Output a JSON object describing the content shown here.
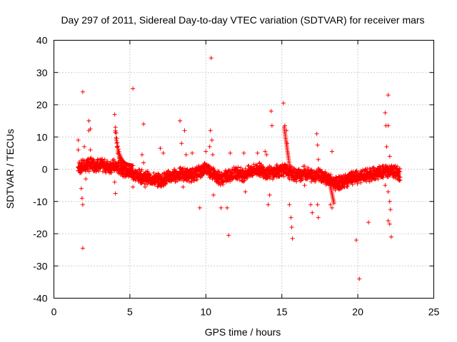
{
  "chart_data": {
    "type": "scatter",
    "title": "Day 297 of 2011, Sidereal Day-to-day VTEC variation (SDTVAR) for receiver mars",
    "xlabel": "GPS time / hours",
    "ylabel": "SDTVAR / TECUs",
    "xlim": [
      0,
      25
    ],
    "ylim": [
      -40,
      40
    ],
    "xticks": [
      0,
      5,
      10,
      15,
      20,
      25
    ],
    "yticks": [
      -40,
      -30,
      -20,
      -10,
      0,
      10,
      20,
      30,
      40
    ],
    "grid": true,
    "marker": "+",
    "color": "#ff0000",
    "baseline": [
      [
        1.6,
        0.5
      ],
      [
        2.0,
        1.0
      ],
      [
        2.5,
        1.5
      ],
      [
        3.0,
        1.2
      ],
      [
        3.5,
        0.8
      ],
      [
        4.0,
        1.0
      ],
      [
        4.5,
        0.0
      ],
      [
        5.0,
        -1.0
      ],
      [
        5.5,
        -2.0
      ],
      [
        6.0,
        -2.5
      ],
      [
        6.5,
        -3.0
      ],
      [
        7.0,
        -3.5
      ],
      [
        7.5,
        -2.5
      ],
      [
        8.0,
        -1.8
      ],
      [
        8.5,
        -1.5
      ],
      [
        9.0,
        -2.0
      ],
      [
        9.5,
        -1.0
      ],
      [
        10.0,
        0.5
      ],
      [
        10.5,
        -1.5
      ],
      [
        11.0,
        -3.0
      ],
      [
        11.5,
        -2.0
      ],
      [
        12.0,
        -1.0
      ],
      [
        12.5,
        -1.8
      ],
      [
        13.0,
        -0.5
      ],
      [
        13.5,
        0.0
      ],
      [
        14.0,
        -1.0
      ],
      [
        14.5,
        -1.0
      ],
      [
        15.0,
        0.0
      ],
      [
        15.5,
        -1.0
      ],
      [
        16.0,
        -2.0
      ],
      [
        16.5,
        -1.0
      ],
      [
        17.0,
        -2.0
      ],
      [
        17.5,
        -1.5
      ],
      [
        18.0,
        -3.0
      ],
      [
        18.5,
        -4.5
      ],
      [
        19.0,
        -4.0
      ],
      [
        19.5,
        -3.0
      ],
      [
        20.0,
        -2.5
      ],
      [
        20.5,
        -2.0
      ],
      [
        21.0,
        -1.5
      ],
      [
        21.5,
        -1.0
      ],
      [
        22.0,
        -0.5
      ],
      [
        22.5,
        -1.0
      ],
      [
        22.8,
        -1.5
      ]
    ],
    "points": [
      [
        1.6,
        9.0
      ],
      [
        1.6,
        6.0
      ],
      [
        1.7,
        1.5
      ],
      [
        1.8,
        -6.0
      ],
      [
        1.85,
        -9.0
      ],
      [
        1.9,
        -11.0
      ],
      [
        1.9,
        24.0
      ],
      [
        1.9,
        -24.5
      ],
      [
        2.0,
        7.0
      ],
      [
        2.1,
        -3.0
      ],
      [
        2.2,
        3.0
      ],
      [
        2.3,
        15.0
      ],
      [
        2.3,
        12.0
      ],
      [
        2.4,
        12.5
      ],
      [
        2.4,
        6.0
      ],
      [
        4.0,
        17.0
      ],
      [
        4.05,
        12.0
      ],
      [
        4.1,
        9.0
      ],
      [
        4.15,
        7.0
      ],
      [
        4.2,
        5.0
      ],
      [
        4.3,
        3.5
      ],
      [
        4.0,
        -4.0
      ],
      [
        4.05,
        -7.5
      ],
      [
        5.2,
        25.0
      ],
      [
        5.2,
        -5.5
      ],
      [
        5.9,
        14.0
      ],
      [
        6.0,
        -5.5
      ],
      [
        5.8,
        4.5
      ],
      [
        5.9,
        2.0
      ],
      [
        7.0,
        6.5
      ],
      [
        7.2,
        5.0
      ],
      [
        8.3,
        15.0
      ],
      [
        8.4,
        8.0
      ],
      [
        8.6,
        12.0
      ],
      [
        8.7,
        4.5
      ],
      [
        8.5,
        -5.5
      ],
      [
        9.1,
        5.0
      ],
      [
        9.6,
        -12.0
      ],
      [
        10.0,
        5.5
      ],
      [
        10.35,
        34.5
      ],
      [
        10.3,
        12.0
      ],
      [
        10.4,
        9.0
      ],
      [
        10.25,
        7.0
      ],
      [
        10.45,
        4.5
      ],
      [
        10.5,
        -8.0
      ],
      [
        11.0,
        -12.0
      ],
      [
        11.4,
        -12.0
      ],
      [
        11.5,
        -20.5
      ],
      [
        11.6,
        5.0
      ],
      [
        12.5,
        5.0
      ],
      [
        12.6,
        -7.0
      ],
      [
        13.4,
        5.0
      ],
      [
        13.9,
        5.5
      ],
      [
        14.0,
        4.5
      ],
      [
        14.3,
        18.0
      ],
      [
        14.35,
        13.5
      ],
      [
        14.2,
        -8.0
      ],
      [
        14.1,
        -11.0
      ],
      [
        15.1,
        20.5
      ],
      [
        15.2,
        13.5
      ],
      [
        15.3,
        12.0
      ],
      [
        15.35,
        8.0
      ],
      [
        15.4,
        5.0
      ],
      [
        15.5,
        -11.0
      ],
      [
        15.6,
        -15.0
      ],
      [
        15.65,
        -18.0
      ],
      [
        15.7,
        -21.5
      ],
      [
        16.5,
        -5.0
      ],
      [
        16.9,
        -11.0
      ],
      [
        17.0,
        -13.5
      ],
      [
        17.3,
        11.0
      ],
      [
        17.35,
        7.5
      ],
      [
        17.4,
        3.0
      ],
      [
        17.35,
        -11.0
      ],
      [
        17.4,
        -15.0
      ],
      [
        18.3,
        5.5
      ],
      [
        18.2,
        -11.0
      ],
      [
        18.3,
        -12.0
      ],
      [
        19.9,
        -22.0
      ],
      [
        20.1,
        -34.0
      ],
      [
        20.7,
        -16.5
      ],
      [
        21.8,
        17.5
      ],
      [
        21.85,
        13.5
      ],
      [
        22.0,
        13.5
      ],
      [
        22.0,
        23.0
      ],
      [
        21.9,
        7.0
      ],
      [
        22.1,
        4.0
      ],
      [
        21.8,
        -5.0
      ],
      [
        22.0,
        -7.0
      ],
      [
        22.1,
        -10.0
      ],
      [
        22.15,
        -12.5
      ],
      [
        22.0,
        -16.0
      ],
      [
        22.1,
        -17.0
      ],
      [
        22.2,
        -21.0
      ]
    ]
  }
}
